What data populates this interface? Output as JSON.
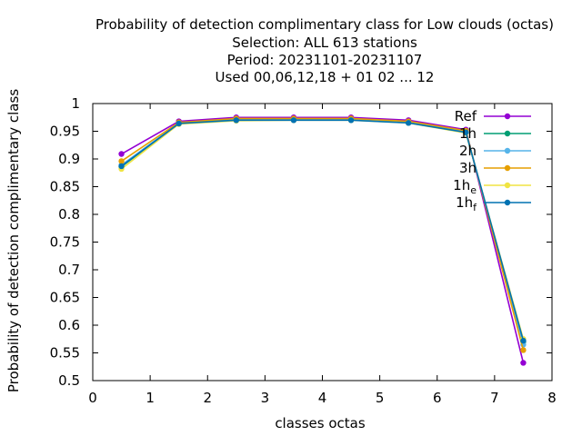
{
  "chart_data": {
    "type": "line",
    "title_lines": [
      "Probability of detection complimentary class  for Low clouds (octas)",
      "Selection: ALL    613 stations",
      "Period: 20231101-20231107",
      "Used  00,06,12,18 + 01 02 ... 12"
    ],
    "xlabel": "classes octas",
    "ylabel": "Probability of detection complimentary class",
    "xlim": [
      0,
      8
    ],
    "ylim": [
      0.5,
      1
    ],
    "x_ticks": [
      "0",
      "1",
      "2",
      "3",
      "4",
      "5",
      "6",
      "7",
      "8"
    ],
    "y_ticks": [
      "0.5",
      "0.55",
      "0.6",
      "0.65",
      "0.7",
      "0.75",
      "0.8",
      "0.85",
      "0.9",
      "0.95",
      "1"
    ],
    "grid": false,
    "legend_position": "top-right",
    "x": [
      0.5,
      1.5,
      2.5,
      3.5,
      4.5,
      5.5,
      6.5,
      7.5
    ],
    "series": [
      {
        "name": "Ref",
        "color": "#9400d3",
        "values": [
          0.909,
          0.968,
          0.975,
          0.975,
          0.975,
          0.97,
          0.953,
          0.532
        ]
      },
      {
        "name": "1h",
        "color": "#009e73",
        "values": [
          0.886,
          0.964,
          0.97,
          0.971,
          0.971,
          0.966,
          0.948,
          0.57
        ]
      },
      {
        "name": "2h",
        "color": "#56b4e9",
        "values": [
          0.889,
          0.965,
          0.971,
          0.972,
          0.972,
          0.967,
          0.949,
          0.565
        ]
      },
      {
        "name": "3h",
        "color": "#e69f00",
        "values": [
          0.896,
          0.966,
          0.973,
          0.973,
          0.973,
          0.968,
          0.951,
          0.555
        ]
      },
      {
        "name": "1h",
        "sub": "e",
        "color": "#f0e442",
        "values": [
          0.882,
          0.963,
          0.969,
          0.97,
          0.97,
          0.965,
          0.947,
          0.575
        ]
      },
      {
        "name": "1h",
        "sub": "f",
        "color": "#0072b2",
        "values": [
          0.887,
          0.964,
          0.97,
          0.97,
          0.97,
          0.965,
          0.948,
          0.572
        ]
      }
    ]
  }
}
